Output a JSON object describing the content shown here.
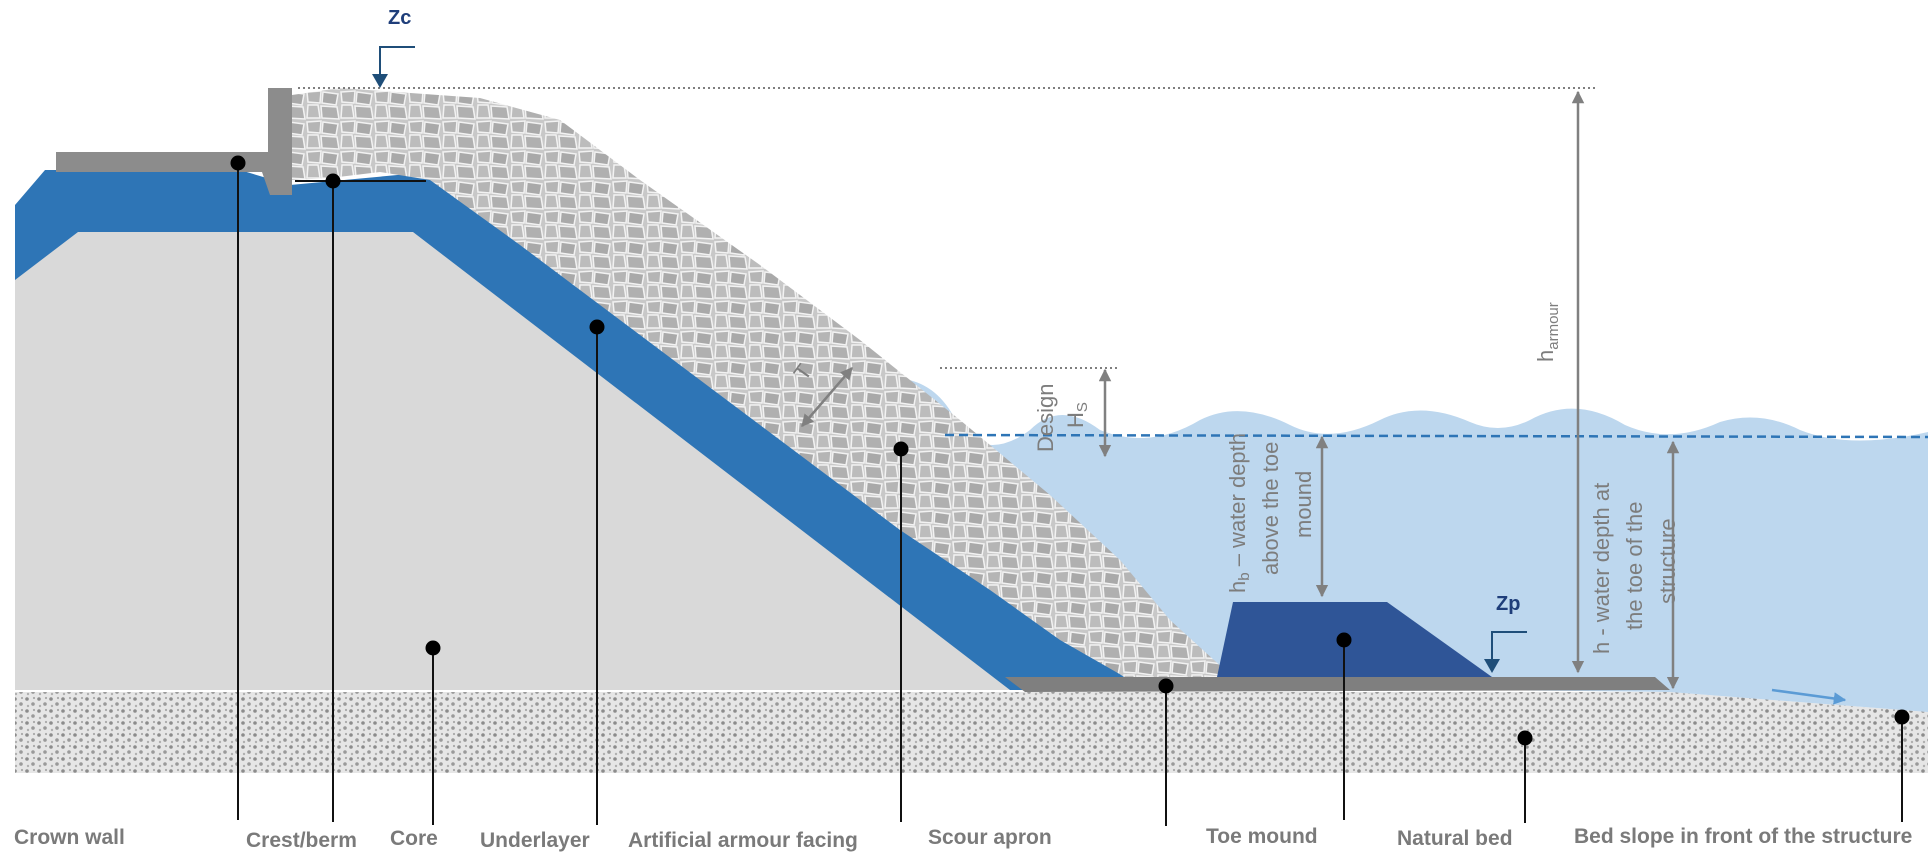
{
  "labels": {
    "crown_wall": "Crown wall",
    "crest_berm": "Crest/berm",
    "core": "Core",
    "underlayer": "Underlayer",
    "artificial_armour": "Artificial armour facing",
    "scour_apron": "Scour apron",
    "toe_mound": "Toe mound",
    "natural_bed": "Natural bed",
    "bed_slope": "Bed slope in front of the structure"
  },
  "levels": {
    "zc": "Zc",
    "zp": "Zp"
  },
  "dimensions": {
    "t": "T",
    "design": "Design",
    "hs_main": "H",
    "hs_sub": "S",
    "h_armour_main": "h",
    "h_armour_sub": "armour",
    "hb_main": "h",
    "hb_sub": "b",
    "hb_line1": " – water depth",
    "hb_line2": "above the toe",
    "hb_line3": "mound",
    "h_line1": "h - water depth at",
    "h_line2": "the toe of the",
    "h_line3": "structure"
  },
  "colors": {
    "core": "#d9d9d9",
    "underlayer": "#2e75b6",
    "armour": "#bfbfbf",
    "water": "#bdd7ee",
    "toe_mound": "#2f5597",
    "apron": "#7f7f7f",
    "seabed": "#e3e3e3",
    "level_marker": "#1f4e79",
    "flow_arrow": "#5b9bd5"
  }
}
